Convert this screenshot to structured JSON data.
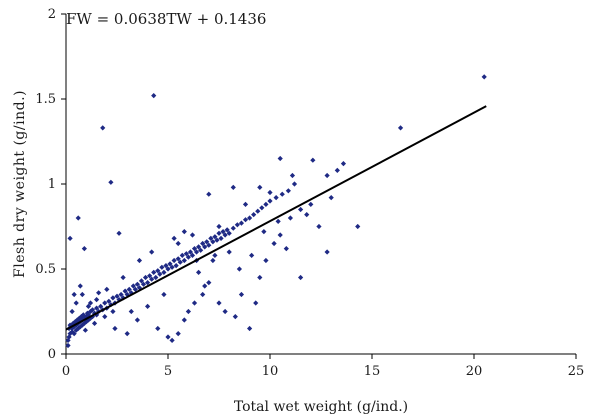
{
  "chart_data": {
    "type": "scatter",
    "title": "",
    "annotation": "FW = 0.0638TW + 0.1436",
    "xlabel": "Total wet weight (g/ind.)",
    "ylabel": "Flesh dry weight (g/ind.)",
    "xlim": [
      0,
      25
    ],
    "ylim": [
      0,
      2
    ],
    "x_ticks": [
      0,
      5,
      10,
      15,
      20,
      25
    ],
    "x_tick_labels": [
      "0",
      "5",
      "10",
      "15",
      "20",
      "25"
    ],
    "y_ticks": [
      0,
      0.5,
      1,
      1.5,
      2
    ],
    "y_tick_labels": [
      "0",
      "0.5",
      "1",
      "1.5",
      "2"
    ],
    "grid": false,
    "legend": "none",
    "marker_color": "#1f2a85",
    "line_color": "#000000",
    "regression": {
      "slope": 0.0638,
      "intercept": 0.1436,
      "x_range": [
        0,
        20.6
      ]
    },
    "points": [
      [
        0.1,
        0.05
      ],
      [
        0.1,
        0.08
      ],
      [
        0.15,
        0.1
      ],
      [
        0.2,
        0.12
      ],
      [
        0.15,
        0.15
      ],
      [
        0.2,
        0.17
      ],
      [
        0.3,
        0.13
      ],
      [
        0.3,
        0.15
      ],
      [
        0.35,
        0.18
      ],
      [
        0.4,
        0.12
      ],
      [
        0.4,
        0.16
      ],
      [
        0.45,
        0.19
      ],
      [
        0.5,
        0.14
      ],
      [
        0.5,
        0.17
      ],
      [
        0.55,
        0.2
      ],
      [
        0.6,
        0.15
      ],
      [
        0.6,
        0.18
      ],
      [
        0.65,
        0.21
      ],
      [
        0.7,
        0.16
      ],
      [
        0.7,
        0.19
      ],
      [
        0.75,
        0.22
      ],
      [
        0.8,
        0.17
      ],
      [
        0.8,
        0.2
      ],
      [
        0.85,
        0.23
      ],
      [
        0.9,
        0.18
      ],
      [
        0.9,
        0.21
      ],
      [
        0.95,
        0.14
      ],
      [
        1.0,
        0.19
      ],
      [
        1.0,
        0.22
      ],
      [
        1.05,
        0.24
      ],
      [
        1.1,
        0.2
      ],
      [
        1.1,
        0.23
      ],
      [
        1.2,
        0.21
      ],
      [
        1.2,
        0.25
      ],
      [
        1.3,
        0.22
      ],
      [
        1.3,
        0.26
      ],
      [
        1.4,
        0.24
      ],
      [
        1.5,
        0.23
      ],
      [
        1.5,
        0.27
      ],
      [
        1.6,
        0.25
      ],
      [
        1.7,
        0.28
      ],
      [
        1.8,
        0.26
      ],
      [
        1.9,
        0.3
      ],
      [
        2.0,
        0.27
      ],
      [
        2.1,
        0.31
      ],
      [
        2.2,
        0.29
      ],
      [
        2.3,
        0.33
      ],
      [
        2.4,
        0.3
      ],
      [
        2.5,
        0.34
      ],
      [
        2.6,
        0.32
      ],
      [
        2.7,
        0.35
      ],
      [
        2.8,
        0.33
      ],
      [
        2.9,
        0.37
      ],
      [
        3.0,
        0.35
      ],
      [
        3.1,
        0.38
      ],
      [
        3.2,
        0.36
      ],
      [
        3.3,
        0.4
      ],
      [
        3.4,
        0.38
      ],
      [
        3.5,
        0.41
      ],
      [
        3.6,
        0.39
      ],
      [
        3.7,
        0.43
      ],
      [
        3.8,
        0.41
      ],
      [
        3.9,
        0.45
      ],
      [
        4.0,
        0.42
      ],
      [
        4.1,
        0.46
      ],
      [
        4.2,
        0.44
      ],
      [
        4.3,
        0.48
      ],
      [
        4.4,
        0.45
      ],
      [
        4.5,
        0.49
      ],
      [
        4.6,
        0.47
      ],
      [
        4.7,
        0.51
      ],
      [
        4.8,
        0.48
      ],
      [
        4.9,
        0.52
      ],
      [
        5.0,
        0.5
      ],
      [
        5.1,
        0.53
      ],
      [
        5.2,
        0.51
      ],
      [
        5.3,
        0.55
      ],
      [
        5.4,
        0.52
      ],
      [
        5.5,
        0.56
      ],
      [
        5.6,
        0.54
      ],
      [
        5.7,
        0.58
      ],
      [
        5.8,
        0.55
      ],
      [
        5.9,
        0.59
      ],
      [
        6.0,
        0.57
      ],
      [
        6.1,
        0.6
      ],
      [
        6.2,
        0.58
      ],
      [
        6.3,
        0.62
      ],
      [
        6.4,
        0.6
      ],
      [
        6.5,
        0.63
      ],
      [
        6.6,
        0.61
      ],
      [
        6.7,
        0.65
      ],
      [
        6.8,
        0.63
      ],
      [
        6.9,
        0.66
      ],
      [
        7.0,
        0.64
      ],
      [
        7.1,
        0.68
      ],
      [
        7.2,
        0.66
      ],
      [
        7.3,
        0.69
      ],
      [
        7.4,
        0.67
      ],
      [
        7.5,
        0.71
      ],
      [
        7.6,
        0.68
      ],
      [
        7.7,
        0.72
      ],
      [
        7.8,
        0.7
      ],
      [
        7.9,
        0.73
      ],
      [
        8.0,
        0.71
      ],
      [
        8.2,
        0.74
      ],
      [
        8.4,
        0.76
      ],
      [
        8.6,
        0.77
      ],
      [
        8.8,
        0.79
      ],
      [
        9.0,
        0.8
      ],
      [
        9.2,
        0.82
      ],
      [
        9.4,
        0.84
      ],
      [
        9.6,
        0.86
      ],
      [
        9.8,
        0.88
      ],
      [
        10.0,
        0.9
      ],
      [
        10.3,
        0.92
      ],
      [
        10.6,
        0.94
      ],
      [
        10.9,
        0.96
      ],
      [
        11.2,
        1.0
      ],
      [
        0.3,
        0.25
      ],
      [
        0.5,
        0.3
      ],
      [
        0.8,
        0.35
      ],
      [
        1.2,
        0.3
      ],
      [
        1.6,
        0.36
      ],
      [
        2.0,
        0.38
      ],
      [
        0.2,
        0.68
      ],
      [
        0.6,
        0.8
      ],
      [
        0.9,
        0.62
      ],
      [
        1.8,
        1.33
      ],
      [
        2.2,
        1.01
      ],
      [
        2.6,
        0.71
      ],
      [
        4.3,
        1.52
      ],
      [
        1.4,
        0.18
      ],
      [
        2.4,
        0.15
      ],
      [
        3.0,
        0.12
      ],
      [
        3.5,
        0.2
      ],
      [
        4.0,
        0.28
      ],
      [
        4.5,
        0.15
      ],
      [
        5.0,
        0.1
      ],
      [
        5.2,
        0.08
      ],
      [
        5.5,
        0.12
      ],
      [
        5.8,
        0.2
      ],
      [
        6.0,
        0.25
      ],
      [
        6.3,
        0.3
      ],
      [
        6.7,
        0.35
      ],
      [
        7.0,
        0.42
      ],
      [
        7.5,
        0.3
      ],
      [
        7.8,
        0.25
      ],
      [
        8.3,
        0.22
      ],
      [
        8.6,
        0.35
      ],
      [
        9.0,
        0.15
      ],
      [
        9.3,
        0.3
      ],
      [
        9.5,
        0.45
      ],
      [
        9.8,
        0.55
      ],
      [
        10.2,
        0.65
      ],
      [
        10.5,
        0.7
      ],
      [
        11.0,
        0.8
      ],
      [
        11.5,
        0.85
      ],
      [
        12.0,
        0.88
      ],
      [
        12.4,
        0.75
      ],
      [
        12.8,
        1.05
      ],
      [
        13.3,
        1.08
      ],
      [
        13.6,
        1.12
      ],
      [
        14.3,
        0.75
      ],
      [
        16.4,
        1.33
      ],
      [
        20.5,
        1.63
      ],
      [
        10.5,
        1.15
      ],
      [
        12.1,
        1.14
      ],
      [
        7.0,
        0.94
      ],
      [
        8.2,
        0.98
      ],
      [
        9.5,
        0.98
      ],
      [
        11.5,
        0.45
      ],
      [
        12.8,
        0.6
      ],
      [
        3.2,
        0.25
      ],
      [
        4.8,
        0.35
      ],
      [
        6.5,
        0.48
      ],
      [
        7.2,
        0.55
      ],
      [
        8.0,
        0.6
      ],
      [
        5.5,
        0.65
      ],
      [
        6.2,
        0.7
      ],
      [
        7.5,
        0.75
      ],
      [
        8.8,
        0.88
      ],
      [
        10.0,
        0.95
      ],
      [
        2.8,
        0.45
      ],
      [
        3.6,
        0.55
      ],
      [
        4.2,
        0.6
      ],
      [
        6.8,
        0.4
      ],
      [
        8.5,
        0.5
      ],
      [
        9.1,
        0.58
      ],
      [
        10.8,
        0.62
      ],
      [
        0.4,
        0.35
      ],
      [
        0.7,
        0.4
      ],
      [
        1.1,
        0.28
      ],
      [
        1.5,
        0.32
      ],
      [
        1.9,
        0.22
      ],
      [
        2.3,
        0.25
      ],
      [
        5.3,
        0.68
      ],
      [
        5.8,
        0.72
      ],
      [
        6.4,
        0.55
      ],
      [
        7.3,
        0.58
      ],
      [
        9.7,
        0.72
      ],
      [
        10.4,
        0.78
      ],
      [
        11.8,
        0.82
      ],
      [
        13.0,
        0.92
      ],
      [
        11.1,
        1.05
      ]
    ]
  }
}
